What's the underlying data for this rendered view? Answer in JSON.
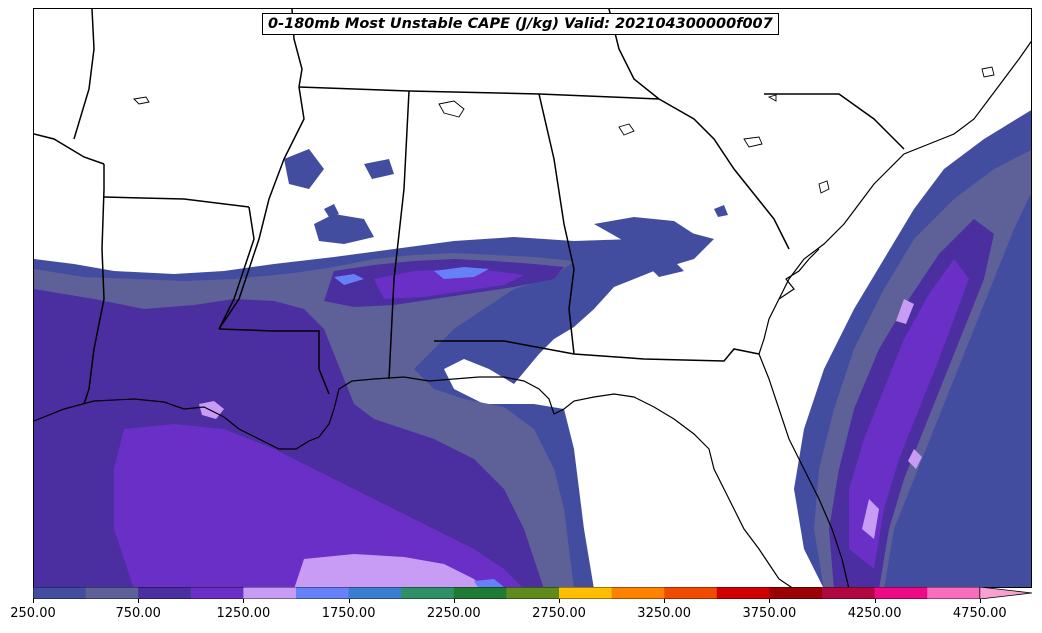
{
  "title": "0-180mb Most Unstable CAPE (J/kg) Valid: 202104300000f007",
  "colorbar": {
    "colors": [
      "#434da0",
      "#5e6098",
      "#4b2e9f",
      "#6a2fc6",
      "#c89cf4",
      "#6680f8",
      "#3b7dd0",
      "#2f9068",
      "#1f7a33",
      "#5f8a1c",
      "#ffbf00",
      "#ff8100",
      "#f04b00",
      "#d10000",
      "#9b0004",
      "#b0073f",
      "#ee0a86",
      "#fa6cbc",
      "#f7a1d3"
    ],
    "tick_labels": [
      "250.00",
      "750.00",
      "1250.00",
      "1750.00",
      "2250.00",
      "2750.00",
      "3250.00",
      "3750.00",
      "4250.00",
      "4750.00"
    ]
  },
  "map": {
    "fill_colors": {
      "level1": "#434da0",
      "level2": "#5e6098",
      "level3": "#4b2e9f",
      "level4": "#6a2fc6",
      "level5": "#c89cf4",
      "level6": "#6680f8"
    }
  }
}
